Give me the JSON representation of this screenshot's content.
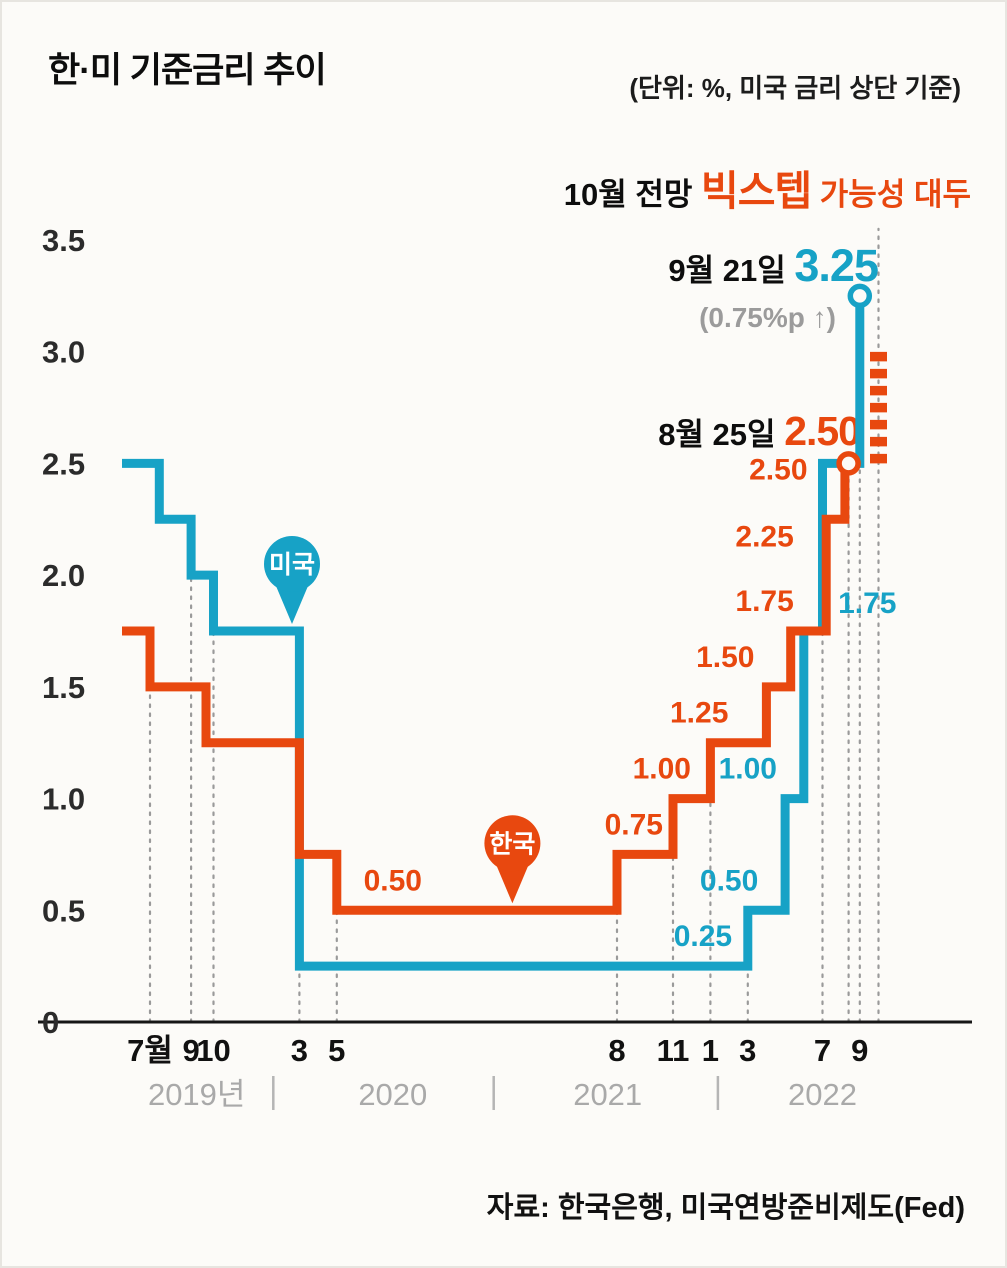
{
  "header": {
    "title": "한·미 기준금리 추이",
    "unit_note": "(단위: %, 미국 금리 상단 기준)"
  },
  "annotations": {
    "forecast_prefix": "10월 전망 ",
    "forecast_highlight": "빅스텝",
    "forecast_suffix": " 가능성 대두",
    "sep_date": "9월 21일 ",
    "sep_value": "3.25",
    "sep_change": "(0.75%p ↑)",
    "aug_date": "8월 25일 ",
    "aug_value": "2.50"
  },
  "source": "자료: 한국은행, 미국연방준비제도(Fed)",
  "colors": {
    "us": "#17a2c6",
    "korea": "#e8480f",
    "gray": "#9b9b9b",
    "background": "#fcfbf8"
  },
  "chart_data": {
    "type": "line",
    "step": true,
    "title": "한·미 기준금리 추이",
    "ylabel": "%",
    "ylim": [
      0,
      3.5
    ],
    "x_unit": "months since 2019-07",
    "grid": "vertical dotted guides only",
    "legend_position": "pins on lines",
    "y_tick_labels": [
      "3.5",
      "3.0",
      "2.5",
      "2.0",
      "1.5",
      "1.0",
      "0.5",
      "0"
    ],
    "series": [
      {
        "key": "us",
        "name": "미국",
        "color_key": "us",
        "points": [
          [
            -1.5,
            2.5
          ],
          [
            0.5,
            2.25
          ],
          [
            2.2,
            2.0
          ],
          [
            3.4,
            1.75
          ],
          [
            8,
            0.25
          ],
          [
            32,
            0.5
          ],
          [
            34,
            1.0
          ],
          [
            35,
            1.75
          ],
          [
            36,
            2.5
          ],
          [
            38,
            3.25
          ]
        ],
        "marker": [
          38,
          3.25
        ]
      },
      {
        "key": "korea",
        "name": "한국",
        "color_key": "korea",
        "points": [
          [
            -1.5,
            1.75
          ],
          [
            0,
            1.5
          ],
          [
            3,
            1.25
          ],
          [
            8,
            0.75
          ],
          [
            10,
            0.5
          ],
          [
            25,
            0.75
          ],
          [
            28,
            1.0
          ],
          [
            30,
            1.25
          ],
          [
            33,
            1.5
          ],
          [
            34.3,
            1.75
          ],
          [
            36.2,
            2.25
          ],
          [
            37.2,
            2.5
          ]
        ],
        "end_m": 37.4,
        "marker": [
          37.4,
          2.5
        ]
      }
    ],
    "x_ticks": [
      {
        "label": "7월",
        "m": 0,
        "guide_top": 1.75
      },
      {
        "label": "9",
        "m": 2.2,
        "guide_top": 2.25
      },
      {
        "label": "10",
        "m": 3.4,
        "guide_top": 2.0
      },
      {
        "label": "3",
        "m": 8,
        "guide_top": 1.75
      },
      {
        "label": "5",
        "m": 10,
        "guide_top": 0.75
      },
      {
        "label": "8",
        "m": 25,
        "guide_top": 0.75
      },
      {
        "label": "11",
        "m": 28,
        "guide_top": 1.0
      },
      {
        "label": "1",
        "m": 30,
        "guide_top": 1.25
      },
      {
        "label": "3",
        "m": 32,
        "guide_top": 0.5
      },
      {
        "label": "7",
        "m": 36,
        "guide_top": 2.5
      },
      {
        "label": "9",
        "m": 38,
        "guide_top": 3.25
      }
    ],
    "extra_guides": [
      {
        "m": 37.4,
        "top": 2.5
      },
      {
        "m": 39,
        "top": 3.55
      }
    ],
    "projection": {
      "m": 39,
      "from": 2.5,
      "to": 3.0,
      "meaning": "10월 빅스텝 전망"
    },
    "value_labels": [
      {
        "text": "0.50",
        "series": "korea",
        "m": 13.0,
        "v": 0.5,
        "dy": -20
      },
      {
        "text": "0.75",
        "series": "korea",
        "m": 25.9,
        "v": 0.75,
        "dy": -20
      },
      {
        "text": "1.00",
        "series": "korea",
        "m": 27.4,
        "v": 1.0,
        "dy": -20
      },
      {
        "text": "1.25",
        "series": "korea",
        "m": 29.4,
        "v": 1.25,
        "dy": -20
      },
      {
        "text": "1.50",
        "series": "korea",
        "m": 30.8,
        "v": 1.5,
        "dy": -20
      },
      {
        "text": "1.75",
        "series": "korea",
        "m": 32.9,
        "v": 1.75,
        "dy": -20
      },
      {
        "text": "2.25",
        "series": "korea",
        "m": 32.9,
        "v": 2.25,
        "dy": 27
      },
      {
        "text": "2.50",
        "series": "korea",
        "m": 35.2,
        "v": 2.5,
        "dy": 16,
        "anchor": "end"
      },
      {
        "text": "0.25",
        "series": "us",
        "m": 29.6,
        "v": 0.25,
        "dy": -20
      },
      {
        "text": "0.50",
        "series": "us",
        "m": 31.0,
        "v": 0.5,
        "dy": -20
      },
      {
        "text": "1.00",
        "series": "us",
        "m": 32.0,
        "v": 1.0,
        "dy": -20
      },
      {
        "text": "1.75",
        "series": "us",
        "m": 38.4,
        "v": 1.75,
        "dy": -18
      }
    ],
    "pins": [
      {
        "key": "us",
        "label": "미국",
        "color_key": "us",
        "m": 7.6,
        "v_tip": 1.75
      },
      {
        "key": "korea",
        "label": "한국",
        "color_key": "korea",
        "m": 19.4,
        "v_tip": 0.5
      }
    ],
    "years": [
      {
        "label": "2019년",
        "m": 2.5
      },
      {
        "label": "2020",
        "m": 13
      },
      {
        "label": "2021",
        "m": 24.5
      },
      {
        "label": "2022",
        "m": 36
      }
    ],
    "year_separators_m": [
      6.6,
      18.4,
      30.4
    ]
  }
}
